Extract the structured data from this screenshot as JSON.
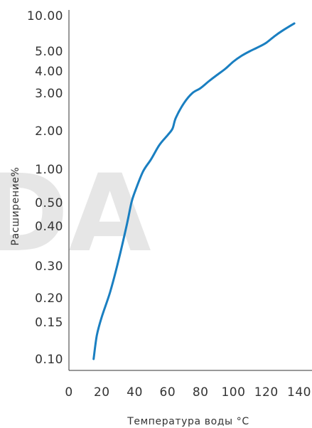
{
  "watermark": {
    "text": "DA",
    "color": "#e6e6e6"
  },
  "chart_data": {
    "type": "line",
    "title": "",
    "xlabel": "Температура воды °C",
    "ylabel": "Расширение%",
    "y_scale": "custom-nonlinear",
    "y_ticks": [
      {
        "value": 10.0,
        "label": "10.00"
      },
      {
        "value": 5.0,
        "label": "5.00"
      },
      {
        "value": 4.0,
        "label": "4.00"
      },
      {
        "value": 3.0,
        "label": "3.00"
      },
      {
        "value": 2.0,
        "label": "2.00"
      },
      {
        "value": 1.0,
        "label": "1.00"
      },
      {
        "value": 0.5,
        "label": "0.50"
      },
      {
        "value": 0.4,
        "label": "0.40"
      },
      {
        "value": 0.3,
        "label": "0.30"
      },
      {
        "value": 0.2,
        "label": "0.20"
      },
      {
        "value": 0.15,
        "label": "0.15"
      },
      {
        "value": 0.1,
        "label": "0.10"
      }
    ],
    "x_ticks": [
      {
        "value": 0,
        "label": "0"
      },
      {
        "value": 20,
        "label": "20"
      },
      {
        "value": 40,
        "label": "40"
      },
      {
        "value": 60,
        "label": "60"
      },
      {
        "value": 80,
        "label": "80"
      },
      {
        "value": 100,
        "label": "100"
      },
      {
        "value": 120,
        "label": "120"
      },
      {
        "value": 140,
        "label": "140"
      }
    ],
    "xlim": [
      0,
      140
    ],
    "ylim": [
      0.1,
      10.0
    ],
    "grid": false,
    "line_color": "#1a7fc1",
    "series": [
      {
        "values": [
          [
            15,
            0.1
          ],
          [
            17,
            0.13
          ],
          [
            20,
            0.16
          ],
          [
            25,
            0.215
          ],
          [
            30,
            0.31
          ],
          [
            35,
            0.4
          ],
          [
            38,
            0.5
          ],
          [
            40,
            0.62
          ],
          [
            45,
            0.95
          ],
          [
            50,
            1.2
          ],
          [
            55,
            1.55
          ],
          [
            60,
            1.85
          ],
          [
            63,
            2.05
          ],
          [
            65,
            2.3
          ],
          [
            70,
            2.7
          ],
          [
            75,
            3.0
          ],
          [
            80,
            3.2
          ],
          [
            85,
            3.5
          ],
          [
            90,
            3.8
          ],
          [
            95,
            4.1
          ],
          [
            100,
            4.45
          ],
          [
            105,
            4.75
          ],
          [
            110,
            5.0
          ],
          [
            115,
            5.4
          ],
          [
            120,
            5.9
          ],
          [
            125,
            6.7
          ],
          [
            130,
            7.5
          ],
          [
            137,
            8.6
          ]
        ]
      }
    ]
  }
}
